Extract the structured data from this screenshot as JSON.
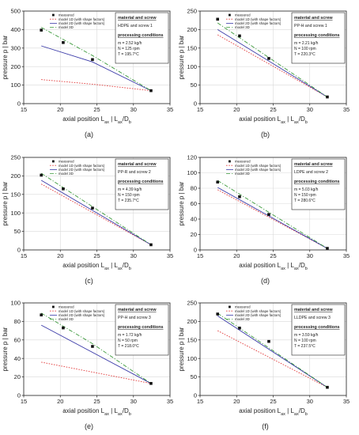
{
  "figure": {
    "x_label_main": "axial position L",
    "x_label_sub1": "ax",
    "x_label_mid": " | L",
    "x_label_sub2": "ax",
    "x_label_div": "/D",
    "x_label_sub3": "b",
    "y_label": "pressure p | bar",
    "legend_labels": [
      "measured",
      "model 1D (with shape factors)",
      "model 2D (with shape factors)",
      "model 3D"
    ],
    "info_headings": [
      "material and screw",
      "processing conditions"
    ],
    "colors": {
      "measured": "#111111",
      "model1d": "#e23b3b",
      "model2d": "#3a3aa8",
      "model3d": "#3c9a3c",
      "axis": "#222222",
      "grid": "#d9d9d9"
    }
  },
  "chart_data": [
    {
      "type": "line",
      "panel_label": "(a)",
      "material": "HDPE and screw 1",
      "conditions": [
        "m = 2.52 kg/h",
        "N = 125 rpm",
        "T = 195.7°C"
      ],
      "x_ticks": [
        "15",
        "20",
        "25",
        "30",
        "35"
      ],
      "y_ticks": [
        "0",
        "100",
        "200",
        "300",
        "400",
        "500"
      ],
      "xlim": [
        15,
        35
      ],
      "ylim": [
        0,
        500
      ],
      "legend_position": "top-center",
      "grid": true,
      "series": [
        {
          "name": "measured",
          "style": "markers",
          "x": [
            17.4,
            20.4,
            24.4,
            32.4
          ],
          "y": [
            397,
            330,
            238,
            70
          ]
        },
        {
          "name": "model 1D (with shape factors)",
          "style": "dotted",
          "x": [
            17.4,
            24.4,
            32.4
          ],
          "y": [
            130,
            105,
            70
          ]
        },
        {
          "name": "model 2D (with shape factors)",
          "style": "solid",
          "x": [
            17.4,
            24.4,
            32.4
          ],
          "y": [
            312,
            225,
            70
          ]
        },
        {
          "name": "model 3D",
          "style": "dashdot",
          "x": [
            17.4,
            24.4,
            32.4
          ],
          "y": [
            412,
            260,
            70
          ]
        }
      ]
    },
    {
      "type": "line",
      "panel_label": "(b)",
      "material": "PP-H and screw 1",
      "conditions": [
        "m = 2.21 kg/h",
        "N = 100 rpm",
        "T = 220.3°C"
      ],
      "x_ticks": [
        "15",
        "20",
        "25",
        "30",
        "35"
      ],
      "y_ticks": [
        "0",
        "50",
        "100",
        "150",
        "200",
        "250"
      ],
      "xlim": [
        15,
        35
      ],
      "ylim": [
        0,
        250
      ],
      "legend_position": "top-center",
      "grid": true,
      "series": [
        {
          "name": "measured",
          "style": "markers",
          "x": [
            17.4,
            20.4,
            24.4,
            32.4
          ],
          "y": [
            228,
            183,
            122,
            18
          ]
        },
        {
          "name": "model 1D (with shape factors)",
          "style": "dotted",
          "x": [
            17.4,
            32.4
          ],
          "y": [
            186,
            18
          ]
        },
        {
          "name": "model 2D (with shape factors)",
          "style": "solid",
          "x": [
            17.4,
            32.4
          ],
          "y": [
            200,
            18
          ]
        },
        {
          "name": "model 3D",
          "style": "dashdot",
          "x": [
            17.4,
            32.4
          ],
          "y": [
            218,
            18
          ]
        }
      ]
    },
    {
      "type": "line",
      "panel_label": "(c)",
      "material": "PP-R and screw 2",
      "conditions": [
        "m = 4.39 kg/h",
        "N = 150 rpm",
        "T = 235.7°C"
      ],
      "x_ticks": [
        "15",
        "20",
        "25",
        "30",
        "35"
      ],
      "y_ticks": [
        "0",
        "50",
        "100",
        "150",
        "200",
        "250"
      ],
      "xlim": [
        15,
        35
      ],
      "ylim": [
        0,
        250
      ],
      "legend_position": "top-center",
      "grid": true,
      "series": [
        {
          "name": "measured",
          "style": "markers",
          "x": [
            17.4,
            20.4,
            24.4,
            32.4
          ],
          "y": [
            202,
            165,
            113,
            14
          ]
        },
        {
          "name": "model 1D (with shape factors)",
          "style": "dotted",
          "x": [
            17.4,
            32.4
          ],
          "y": [
            178,
            14
          ]
        },
        {
          "name": "model 2D (with shape factors)",
          "style": "solid",
          "x": [
            17.4,
            32.4
          ],
          "y": [
            188,
            14
          ]
        },
        {
          "name": "model 3D",
          "style": "dashdot",
          "x": [
            17.4,
            32.4
          ],
          "y": [
            207,
            14
          ]
        }
      ]
    },
    {
      "type": "line",
      "panel_label": "(d)",
      "material": "LDPE and screw 2",
      "conditions": [
        "m = 5.03 kg/h",
        "N = 150 rpm",
        "T = 280.6°C"
      ],
      "x_ticks": [
        "15",
        "20",
        "25",
        "30",
        "35"
      ],
      "y_ticks": [
        "0",
        "20",
        "40",
        "60",
        "80",
        "100",
        "120"
      ],
      "xlim": [
        15,
        35
      ],
      "ylim": [
        0,
        120
      ],
      "legend_position": "top-center",
      "grid": true,
      "series": [
        {
          "name": "measured",
          "style": "markers",
          "x": [
            17.4,
            20.4,
            24.4,
            32.4
          ],
          "y": [
            88,
            69,
            46,
            2
          ]
        },
        {
          "name": "model 1D (with shape factors)",
          "style": "dotted",
          "x": [
            17.4,
            32.4
          ],
          "y": [
            78,
            2
          ]
        },
        {
          "name": "model 2D (with shape factors)",
          "style": "solid",
          "x": [
            17.4,
            32.4
          ],
          "y": [
            81,
            2
          ]
        },
        {
          "name": "model 3D",
          "style": "dashdot",
          "x": [
            17.4,
            32.4
          ],
          "y": [
            90,
            2
          ]
        }
      ]
    },
    {
      "type": "line",
      "panel_label": "(e)",
      "material": "PP-H and screw 3",
      "conditions": [
        "m = 1.72 kg/h",
        "N = 50 rpm",
        "T = 218.0°C"
      ],
      "x_ticks": [
        "15",
        "20",
        "25",
        "30",
        "35"
      ],
      "y_ticks": [
        "0",
        "20",
        "40",
        "60",
        "80",
        "100"
      ],
      "xlim": [
        15,
        35
      ],
      "ylim": [
        0,
        100
      ],
      "legend_position": "top-center",
      "grid": true,
      "series": [
        {
          "name": "measured",
          "style": "markers",
          "x": [
            17.4,
            20.4,
            24.4,
            32.4
          ],
          "y": [
            87,
            73,
            53,
            13
          ]
        },
        {
          "name": "model 1D (with shape factors)",
          "style": "dotted",
          "x": [
            17.4,
            32.4
          ],
          "y": [
            36,
            13
          ]
        },
        {
          "name": "model 2D (with shape factors)",
          "style": "solid",
          "x": [
            17.4,
            32.4
          ],
          "y": [
            76,
            13
          ]
        },
        {
          "name": "model 3D",
          "style": "dashdot",
          "x": [
            17.4,
            24.4,
            32.4
          ],
          "y": [
            89,
            56,
            13
          ]
        }
      ]
    },
    {
      "type": "line",
      "panel_label": "(f)",
      "material": "LLDPE and screw 3",
      "conditions": [
        "m = 3.59 kg/h",
        "N = 100 rpm",
        "T = 237.5°C"
      ],
      "x_ticks": [
        "15",
        "20",
        "25",
        "30",
        "35"
      ],
      "y_ticks": [
        "0",
        "50",
        "100",
        "150",
        "200",
        "250"
      ],
      "xlim": [
        15,
        35
      ],
      "ylim": [
        0,
        250
      ],
      "legend_position": "top-center",
      "grid": true,
      "series": [
        {
          "name": "measured",
          "style": "markers",
          "x": [
            17.4,
            20.4,
            24.4,
            32.4
          ],
          "y": [
            220,
            182,
            146,
            22
          ]
        },
        {
          "name": "model 1D (with shape factors)",
          "style": "dotted",
          "x": [
            17.4,
            32.4
          ],
          "y": [
            175,
            22
          ]
        },
        {
          "name": "model 2D (with shape factors)",
          "style": "solid",
          "x": [
            17.4,
            32.4
          ],
          "y": [
            215,
            22
          ]
        },
        {
          "name": "model 3D",
          "style": "dashdot",
          "x": [
            17.4,
            32.4
          ],
          "y": [
            222,
            22
          ]
        }
      ]
    }
  ]
}
